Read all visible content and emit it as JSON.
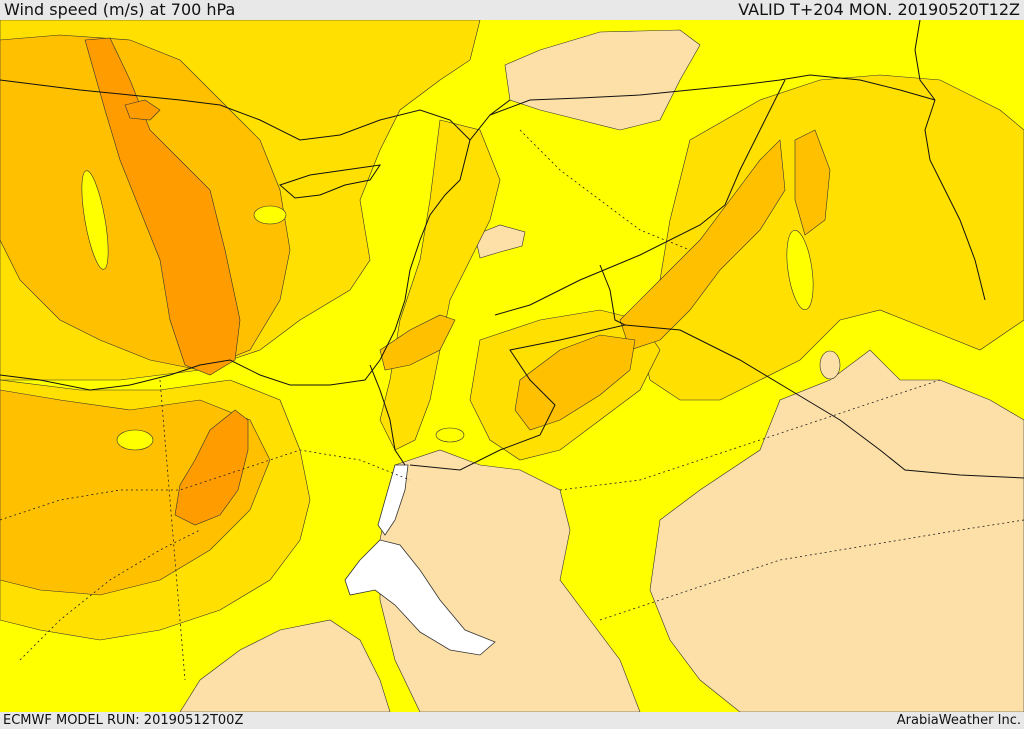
{
  "header": {
    "title": "Wind speed (m/s) at 700 hPa",
    "valid": "VALID T+204 MON. 20190520T12Z"
  },
  "footer": {
    "model_run": "ECMWF MODEL RUN: 20190512T00Z",
    "credit": "ArabiaWeather Inc."
  },
  "map": {
    "colors": {
      "lowest": "#fde0a8",
      "low": "#ffff00",
      "medium": "#ffe000",
      "high": "#ffc000",
      "very_high": "#ff9c00",
      "water_no_data": "#ffffff",
      "coast_borders": "#111111"
    }
  }
}
